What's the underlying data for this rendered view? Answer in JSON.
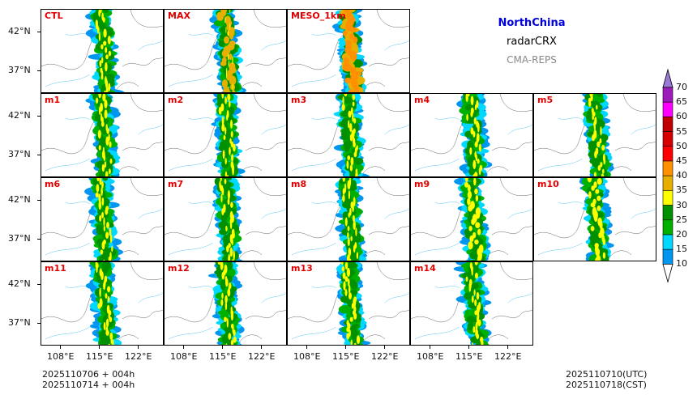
{
  "header": {
    "region": "NorthChina",
    "product": "radarCRX",
    "system": "CMA-REPS",
    "region_color": "#0000dd",
    "system_color": "#888888"
  },
  "panels": [
    {
      "label": "CTL",
      "intensity": 1
    },
    {
      "label": "MAX",
      "intensity": 3
    },
    {
      "label": "MESO_1km",
      "intensity": 4
    },
    {
      "label": "m1",
      "intensity": 1
    },
    {
      "label": "m2",
      "intensity": 1
    },
    {
      "label": "m3",
      "intensity": 1
    },
    {
      "label": "m4",
      "intensity": 1
    },
    {
      "label": "m5",
      "intensity": 1
    },
    {
      "label": "m6",
      "intensity": 1
    },
    {
      "label": "m7",
      "intensity": 1
    },
    {
      "label": "m8",
      "intensity": 1
    },
    {
      "label": "m9",
      "intensity": 2
    },
    {
      "label": "m10",
      "intensity": 2
    },
    {
      "label": "m11",
      "intensity": 1
    },
    {
      "label": "m12",
      "intensity": 1
    },
    {
      "label": "m13",
      "intensity": 1
    },
    {
      "label": "m14",
      "intensity": 1
    }
  ],
  "axes": {
    "lat_ticks": [
      "42°N",
      "37°N"
    ],
    "lon_ticks": [
      "108°E",
      "115°E",
      "122°E"
    ]
  },
  "colorbar": {
    "levels": [
      "70",
      "65",
      "60",
      "55",
      "50",
      "45",
      "40",
      "35",
      "30",
      "25",
      "20",
      "15",
      "10"
    ],
    "colors": [
      "#9b1cb8",
      "#ff00ff",
      "#c00000",
      "#d60000",
      "#ff0000",
      "#ff9000",
      "#e7b000",
      "#ffff00",
      "#009000",
      "#00b000",
      "#00d8ff",
      "#0096f0"
    ],
    "over_color": "#9a7ad6",
    "under_color": "#ffffff"
  },
  "footer": {
    "init_line": "2025110706  +  004h",
    "init_line_cst": "2025110714  +  004h",
    "valid_utc": "2025110710(UTC)",
    "valid_cst": "2025110718(CST)"
  }
}
